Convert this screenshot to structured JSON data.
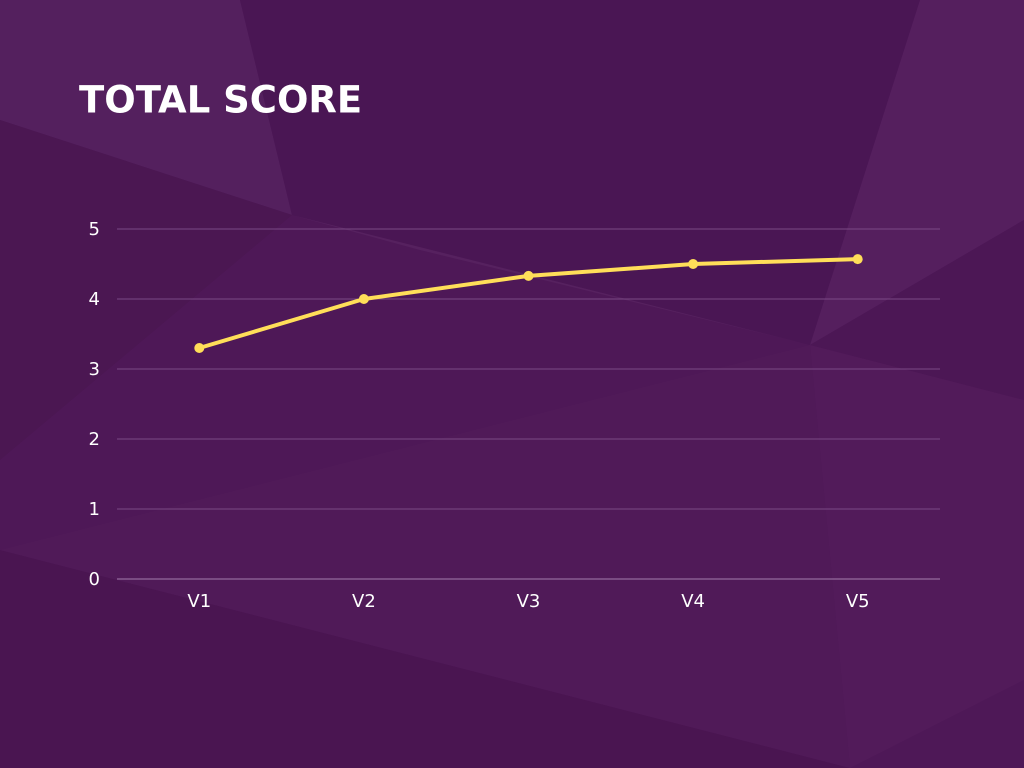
{
  "chart_data": {
    "type": "line",
    "title": "TOTAL SCORE",
    "categories": [
      "V1",
      "V2",
      "V3",
      "V4",
      "V5"
    ],
    "values": [
      3.3,
      4.0,
      4.33,
      4.5,
      4.57
    ],
    "color": "#ffde59",
    "ylim": [
      0,
      5
    ],
    "yticks": [
      0,
      1,
      2,
      3,
      4,
      5
    ],
    "grid": true
  }
}
